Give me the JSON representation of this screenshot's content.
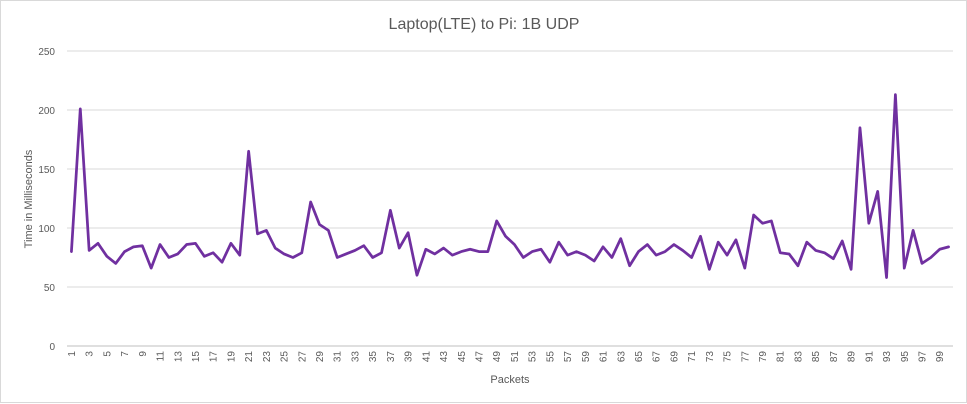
{
  "chart_data": {
    "type": "line",
    "title": "Laptop(LTE) to Pi: 1B UDP",
    "xlabel": "Packets",
    "ylabel": "Time in Milliseconds",
    "ylim": [
      0,
      250
    ],
    "yticks": [
      0,
      50,
      100,
      150,
      200,
      250
    ],
    "xtick_labels": [
      "1",
      "3",
      "5",
      "7",
      "9",
      "11",
      "13",
      "15",
      "17",
      "19",
      "21",
      "23",
      "25",
      "27",
      "29",
      "31",
      "33",
      "35",
      "37",
      "39",
      "41",
      "43",
      "45",
      "47",
      "49",
      "51",
      "53",
      "55",
      "57",
      "59",
      "61",
      "63",
      "65",
      "67",
      "69",
      "71",
      "73",
      "75",
      "77",
      "79",
      "81",
      "83",
      "85",
      "87",
      "89",
      "91",
      "93",
      "95",
      "97",
      "99"
    ],
    "grid": "horizontal",
    "line_color": "#7030a0",
    "series": [
      {
        "x": [
          1,
          2,
          3,
          4,
          5,
          6,
          7,
          8,
          9,
          10,
          11,
          12,
          13,
          14,
          15,
          16,
          17,
          18,
          19,
          20,
          21,
          22,
          23,
          24,
          25,
          26,
          27,
          28,
          29,
          30,
          31,
          32,
          33,
          34,
          35,
          36,
          37,
          38,
          39,
          40,
          41,
          42,
          43,
          44,
          45,
          46,
          47,
          48,
          49,
          50,
          51,
          52,
          53,
          54,
          55,
          56,
          57,
          58,
          59,
          60,
          61,
          62,
          63,
          64,
          65,
          66,
          67,
          68,
          69,
          70,
          71,
          72,
          73,
          74,
          75,
          76,
          77,
          78,
          79,
          80,
          81,
          82,
          83,
          84,
          85,
          86,
          87,
          88,
          89,
          90,
          91,
          92,
          93,
          94,
          95,
          96,
          97,
          98,
          99,
          100
        ],
        "values": [
          80,
          201,
          81,
          87,
          76,
          70,
          80,
          84,
          85,
          66,
          86,
          75,
          78,
          86,
          87,
          76,
          79,
          71,
          87,
          77,
          165,
          95,
          98,
          83,
          78,
          75,
          79,
          122,
          103,
          98,
          75,
          78,
          81,
          85,
          75,
          79,
          115,
          83,
          96,
          60,
          82,
          78,
          83,
          77,
          80,
          82,
          80,
          80,
          106,
          93,
          86,
          75,
          80,
          82,
          71,
          88,
          77,
          80,
          77,
          72,
          84,
          75,
          91,
          68,
          80,
          86,
          77,
          80,
          86,
          81,
          75,
          93,
          65,
          88,
          77,
          90,
          66,
          111,
          104,
          106,
          79,
          78,
          68,
          88,
          81,
          79,
          74,
          89,
          65,
          185,
          104,
          131,
          58,
          213,
          66,
          98,
          70,
          75,
          82,
          84
        ]
      }
    ]
  }
}
